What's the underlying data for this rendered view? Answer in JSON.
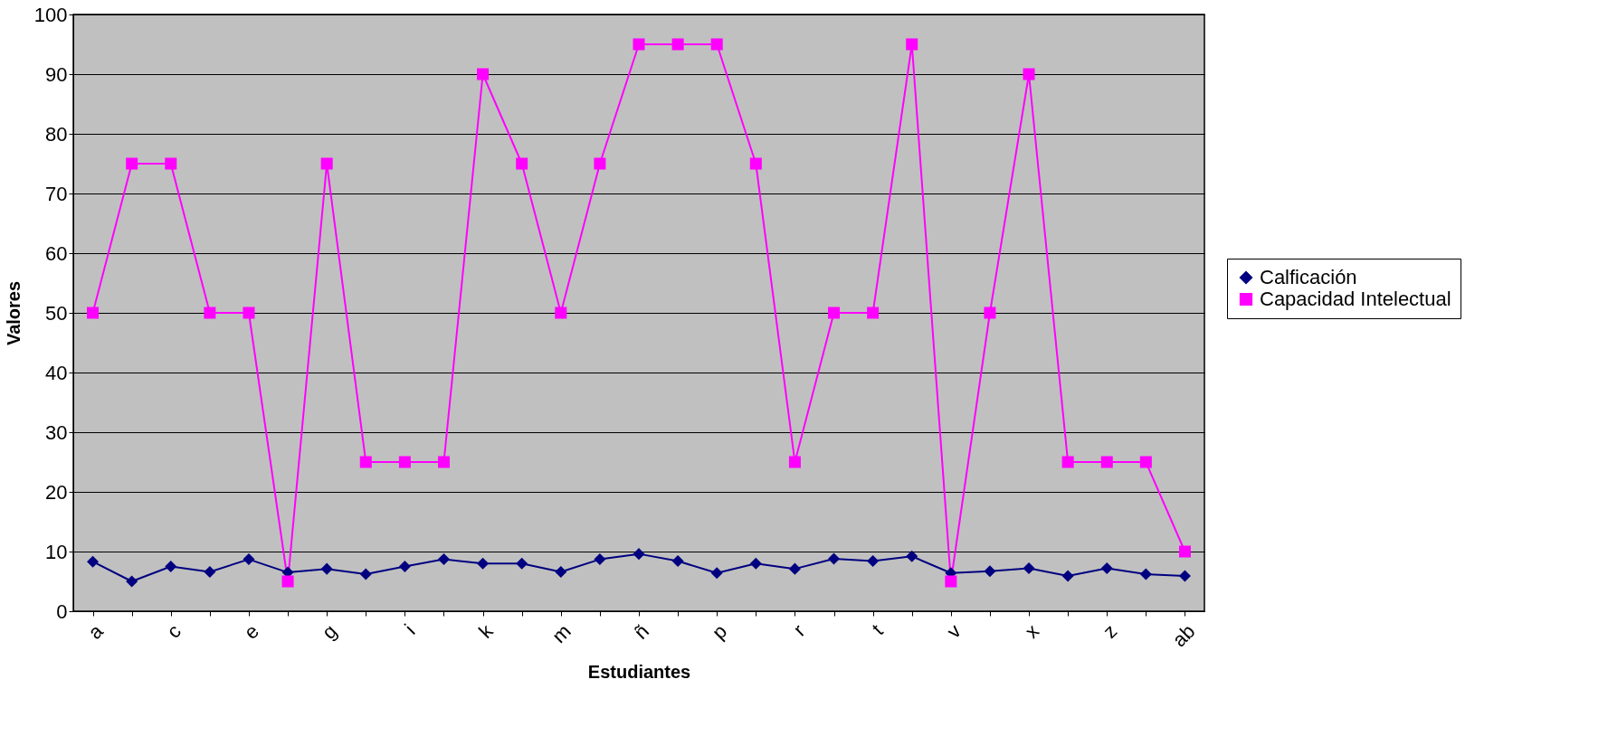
{
  "chart_data": {
    "type": "line",
    "xlabel": "Estudiantes",
    "ylabel": "Valores",
    "categories": [
      "a",
      null,
      "c",
      null,
      "e",
      null,
      "g",
      null,
      "i",
      null,
      "k",
      null,
      "m",
      null,
      "ñ",
      null,
      "p",
      null,
      "r",
      null,
      "t",
      null,
      "v",
      null,
      "x",
      null,
      "z",
      null,
      "ab"
    ],
    "series": [
      {
        "name": "Calficación",
        "color": "#000080",
        "marker": "diamond",
        "values": [
          8.3,
          5.0,
          7.5,
          6.6,
          8.7,
          6.5,
          7.1,
          6.2,
          7.5,
          8.7,
          8.0,
          8.0,
          6.6,
          8.7,
          9.6,
          8.4,
          6.4,
          8.0,
          7.1,
          8.8,
          8.4,
          9.2,
          6.4,
          6.7,
          7.2,
          5.9,
          7.2,
          6.2,
          5.9
        ]
      },
      {
        "name": "Capacidad Intelectual",
        "color": "#ff00ff",
        "marker": "square",
        "values": [
          50,
          75,
          75,
          50,
          50,
          5,
          75,
          25,
          25,
          25,
          90,
          75,
          50,
          75,
          95,
          95,
          95,
          75,
          25,
          50,
          50,
          95,
          5,
          50,
          90,
          25,
          25,
          25,
          10
        ]
      }
    ],
    "ylim": [
      0,
      100
    ],
    "yticks": [
      0,
      10,
      20,
      30,
      40,
      50,
      60,
      70,
      80,
      90,
      100
    ],
    "grid": "y",
    "legend": "right"
  }
}
